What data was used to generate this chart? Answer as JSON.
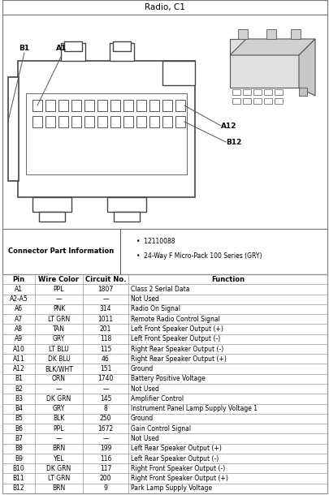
{
  "title": "Radio, C1",
  "connector_info_label": "Connector Part Information",
  "connector_bullets": [
    "12110088",
    "24-Way F Micro-Pack 100 Series (GRY)"
  ],
  "table_headers": [
    "Pin",
    "Wire Color",
    "Circuit No.",
    "Function"
  ],
  "table_rows": [
    [
      "A1",
      "PPL",
      "1807",
      "Class 2 Serial Data"
    ],
    [
      "A2-A5",
      "—",
      "—",
      "Not Used"
    ],
    [
      "A6",
      "PNK",
      "314",
      "Radio On Signal"
    ],
    [
      "A7",
      "LT GRN",
      "1011",
      "Remote Radio Control Signal"
    ],
    [
      "A8",
      "TAN",
      "201",
      "Left Front Speaker Output (+)"
    ],
    [
      "A9",
      "GRY",
      "118",
      "Left Front Speaker Output (-)"
    ],
    [
      "A10",
      "LT BLU",
      "115",
      "Right Rear Speaker Output (-)"
    ],
    [
      "A11",
      "DK BLU",
      "46",
      "Right Rear Speaker Output (+)"
    ],
    [
      "A12",
      "BLK/WHT",
      "151",
      "Ground"
    ],
    [
      "B1",
      "ORN",
      "1740",
      "Battery Positive Voltage"
    ],
    [
      "B2",
      "—",
      "—",
      "Not Used"
    ],
    [
      "B3",
      "DK GRN",
      "145",
      "Amplifier Control"
    ],
    [
      "B4",
      "GRY",
      "8",
      "Instrument Panel Lamp Supply Voltage 1"
    ],
    [
      "B5",
      "BLK",
      "250",
      "Ground"
    ],
    [
      "B6",
      "PPL",
      "1672",
      "Gain Control Signal"
    ],
    [
      "B7",
      "—",
      "—",
      "Not Used"
    ],
    [
      "B8",
      "BRN",
      "199",
      "Left Rear Speaker Output (+)"
    ],
    [
      "B9",
      "YEL",
      "116",
      "Left Rear Speaker Output (-)"
    ],
    [
      "B10",
      "DK GRN",
      "117",
      "Right Front Speaker Output (-)"
    ],
    [
      "B11",
      "LT GRN",
      "200",
      "Right Front Speaker Output (+)"
    ],
    [
      "B12",
      "BRN",
      "9",
      "Park Lamp Supply Voltage"
    ]
  ],
  "bg_color": "#ffffff",
  "font_size_title": 7.5,
  "font_size_table": 5.5,
  "font_size_header": 6.0,
  "font_size_label": 6.5
}
